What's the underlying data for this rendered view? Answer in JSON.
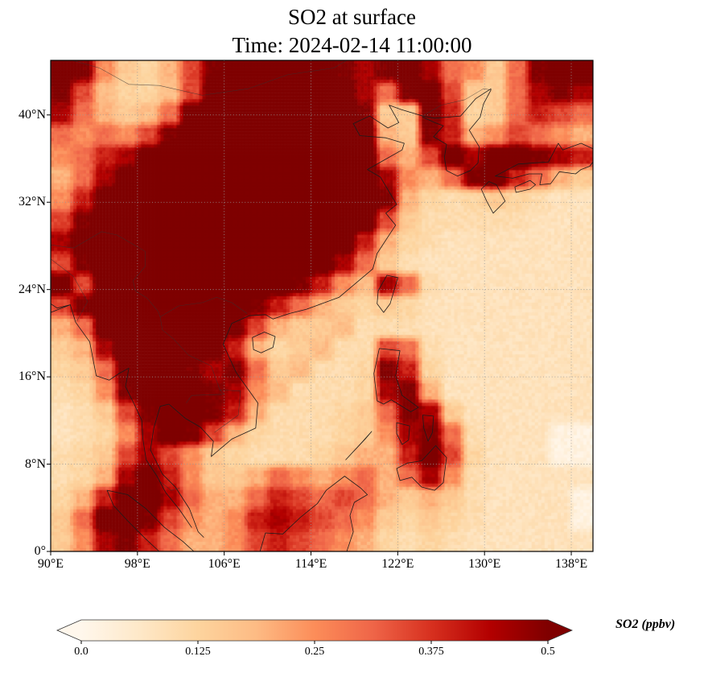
{
  "title": {
    "line1": "SO2 at surface",
    "line2": "Time: 2024-02-14 11:00:00"
  },
  "axes": {
    "x_ticks": [
      {
        "value": 90,
        "label": "90°E"
      },
      {
        "value": 98,
        "label": "98°E"
      },
      {
        "value": 106,
        "label": "106°E"
      },
      {
        "value": 114,
        "label": "114°E"
      },
      {
        "value": 122,
        "label": "122°E"
      },
      {
        "value": 130,
        "label": "130°E"
      },
      {
        "value": 138,
        "label": "138°E"
      }
    ],
    "y_ticks": [
      {
        "value": 40,
        "label": "40°N"
      },
      {
        "value": 32,
        "label": "32°N"
      },
      {
        "value": 24,
        "label": "24°N"
      },
      {
        "value": 16,
        "label": "16°N"
      },
      {
        "value": 8,
        "label": "8°N"
      },
      {
        "value": 0,
        "label": "0°"
      }
    ],
    "lon_range": [
      90,
      140
    ],
    "lat_range": [
      0,
      45
    ]
  },
  "colorbar": {
    "label": "SO2 (ppbv)",
    "ticks": [
      {
        "value": 0.0,
        "label": "0.0"
      },
      {
        "value": 0.125,
        "label": "0.125"
      },
      {
        "value": 0.25,
        "label": "0.25"
      },
      {
        "value": 0.375,
        "label": "0.375"
      },
      {
        "value": 0.5,
        "label": "0.5"
      }
    ]
  },
  "chart_data": {
    "type": "heatmap",
    "title": "SO2 at surface",
    "subtitle": "Time: 2024-02-14 11:00:00",
    "variable": "SO2",
    "units": "ppbv",
    "colormap": {
      "name": "OrRd-like",
      "stops": [
        "#fff7ec",
        "#fee8c8",
        "#fdd49e",
        "#fdbb84",
        "#fc8d59",
        "#ef6548",
        "#d7301f",
        "#b30000",
        "#7f0000"
      ],
      "vmin": 0.0,
      "vmax": 0.5,
      "extend": "both"
    },
    "grid": {
      "lon_min": 90,
      "lon_max": 140,
      "lat_top": 45,
      "lat_bottom": 0,
      "ncols": 25,
      "nrows": 23,
      "note": "rows from north (45N) to south (0N), cols from 90E to 140E, values in ppbv",
      "values": [
        [
          0.55,
          0.5,
          0.25,
          0.15,
          0.12,
          0.2,
          0.35,
          0.5,
          0.6,
          0.6,
          0.6,
          0.6,
          0.55,
          0.5,
          0.45,
          0.5,
          0.55,
          0.45,
          0.3,
          0.25,
          0.15,
          0.3,
          0.5,
          0.55,
          0.6
        ],
        [
          0.5,
          0.35,
          0.18,
          0.13,
          0.12,
          0.18,
          0.35,
          0.55,
          0.62,
          0.65,
          0.65,
          0.62,
          0.6,
          0.55,
          0.45,
          0.3,
          0.5,
          0.55,
          0.35,
          0.15,
          0.15,
          0.3,
          0.45,
          0.5,
          0.45
        ],
        [
          0.45,
          0.3,
          0.2,
          0.15,
          0.18,
          0.3,
          0.55,
          0.65,
          0.65,
          0.65,
          0.65,
          0.65,
          0.65,
          0.6,
          0.5,
          0.15,
          0.15,
          0.55,
          0.4,
          0.12,
          0.15,
          0.3,
          0.4,
          0.35,
          0.3
        ],
        [
          0.3,
          0.25,
          0.3,
          0.25,
          0.35,
          0.5,
          0.62,
          0.65,
          0.65,
          0.65,
          0.65,
          0.65,
          0.65,
          0.62,
          0.55,
          0.2,
          0.15,
          0.5,
          0.4,
          0.2,
          0.25,
          0.35,
          0.3,
          0.25,
          0.2
        ],
        [
          0.25,
          0.3,
          0.4,
          0.45,
          0.55,
          0.62,
          0.65,
          0.65,
          0.65,
          0.65,
          0.65,
          0.65,
          0.65,
          0.65,
          0.6,
          0.3,
          0.2,
          0.35,
          0.55,
          0.45,
          0.55,
          0.6,
          0.5,
          0.45,
          0.4
        ],
        [
          0.2,
          0.3,
          0.45,
          0.55,
          0.62,
          0.65,
          0.65,
          0.65,
          0.65,
          0.65,
          0.65,
          0.65,
          0.65,
          0.65,
          0.62,
          0.45,
          0.25,
          0.2,
          0.3,
          0.5,
          0.55,
          0.4,
          0.3,
          0.2,
          0.15
        ],
        [
          0.25,
          0.4,
          0.55,
          0.62,
          0.65,
          0.65,
          0.65,
          0.65,
          0.65,
          0.65,
          0.65,
          0.65,
          0.65,
          0.65,
          0.6,
          0.5,
          0.2,
          0.12,
          0.1,
          0.12,
          0.15,
          0.12,
          0.1,
          0.08,
          0.08
        ],
        [
          0.35,
          0.5,
          0.6,
          0.65,
          0.65,
          0.65,
          0.65,
          0.65,
          0.65,
          0.65,
          0.65,
          0.65,
          0.65,
          0.6,
          0.55,
          0.35,
          0.15,
          0.1,
          0.1,
          0.1,
          0.1,
          0.1,
          0.08,
          0.08,
          0.08
        ],
        [
          0.45,
          0.55,
          0.62,
          0.65,
          0.65,
          0.65,
          0.65,
          0.65,
          0.65,
          0.65,
          0.65,
          0.65,
          0.6,
          0.55,
          0.4,
          0.2,
          0.12,
          0.1,
          0.08,
          0.08,
          0.08,
          0.08,
          0.08,
          0.08,
          0.08
        ],
        [
          0.35,
          0.5,
          0.62,
          0.65,
          0.65,
          0.65,
          0.65,
          0.65,
          0.65,
          0.65,
          0.65,
          0.6,
          0.55,
          0.45,
          0.3,
          0.15,
          0.1,
          0.08,
          0.08,
          0.08,
          0.08,
          0.08,
          0.08,
          0.08,
          0.08
        ],
        [
          0.55,
          0.35,
          0.6,
          0.65,
          0.65,
          0.65,
          0.65,
          0.65,
          0.65,
          0.6,
          0.55,
          0.5,
          0.4,
          0.25,
          0.18,
          0.45,
          0.3,
          0.1,
          0.08,
          0.08,
          0.08,
          0.08,
          0.08,
          0.08,
          0.08
        ],
        [
          0.35,
          0.5,
          0.6,
          0.65,
          0.65,
          0.65,
          0.65,
          0.65,
          0.6,
          0.5,
          0.4,
          0.3,
          0.2,
          0.15,
          0.12,
          0.15,
          0.12,
          0.08,
          0.08,
          0.08,
          0.08,
          0.08,
          0.08,
          0.08,
          0.08
        ],
        [
          0.2,
          0.3,
          0.55,
          0.65,
          0.65,
          0.65,
          0.65,
          0.6,
          0.5,
          0.35,
          0.2,
          0.15,
          0.15,
          0.18,
          0.1,
          0.1,
          0.1,
          0.08,
          0.08,
          0.08,
          0.08,
          0.08,
          0.08,
          0.08,
          0.08
        ],
        [
          0.15,
          0.2,
          0.45,
          0.6,
          0.65,
          0.65,
          0.6,
          0.55,
          0.4,
          0.2,
          0.12,
          0.15,
          0.18,
          0.1,
          0.1,
          0.35,
          0.3,
          0.1,
          0.08,
          0.08,
          0.08,
          0.08,
          0.08,
          0.08,
          0.08
        ],
        [
          0.12,
          0.15,
          0.3,
          0.55,
          0.62,
          0.6,
          0.5,
          0.45,
          0.5,
          0.3,
          0.15,
          0.18,
          0.1,
          0.1,
          0.12,
          0.5,
          0.4,
          0.12,
          0.08,
          0.08,
          0.08,
          0.08,
          0.08,
          0.08,
          0.08
        ],
        [
          0.1,
          0.12,
          0.25,
          0.5,
          0.55,
          0.55,
          0.55,
          0.5,
          0.45,
          0.25,
          0.18,
          0.1,
          0.1,
          0.1,
          0.12,
          0.45,
          0.5,
          0.2,
          0.08,
          0.08,
          0.08,
          0.08,
          0.08,
          0.08,
          0.08
        ],
        [
          0.08,
          0.1,
          0.15,
          0.35,
          0.5,
          0.55,
          0.55,
          0.5,
          0.4,
          0.2,
          0.1,
          0.1,
          0.1,
          0.12,
          0.15,
          0.3,
          0.5,
          0.45,
          0.15,
          0.08,
          0.08,
          0.08,
          0.08,
          0.08,
          0.08
        ],
        [
          0.08,
          0.1,
          0.12,
          0.25,
          0.45,
          0.55,
          0.5,
          0.35,
          0.2,
          0.12,
          0.1,
          0.1,
          0.1,
          0.12,
          0.15,
          0.25,
          0.45,
          0.5,
          0.3,
          0.1,
          0.08,
          0.08,
          0.08,
          0.02,
          0.02
        ],
        [
          0.1,
          0.12,
          0.15,
          0.35,
          0.45,
          0.35,
          0.25,
          0.15,
          0.12,
          0.1,
          0.1,
          0.1,
          0.12,
          0.15,
          0.2,
          0.2,
          0.4,
          0.55,
          0.35,
          0.12,
          0.08,
          0.08,
          0.08,
          0.02,
          0.02
        ],
        [
          0.1,
          0.12,
          0.2,
          0.45,
          0.55,
          0.4,
          0.25,
          0.15,
          0.15,
          0.2,
          0.3,
          0.25,
          0.2,
          0.25,
          0.3,
          0.2,
          0.3,
          0.45,
          0.25,
          0.1,
          0.08,
          0.08,
          0.08,
          0.08,
          0.08
        ],
        [
          0.12,
          0.2,
          0.4,
          0.55,
          0.6,
          0.45,
          0.3,
          0.2,
          0.2,
          0.3,
          0.4,
          0.35,
          0.3,
          0.35,
          0.3,
          0.2,
          0.15,
          0.2,
          0.15,
          0.1,
          0.08,
          0.08,
          0.08,
          0.08,
          0.02
        ],
        [
          0.15,
          0.3,
          0.55,
          0.6,
          0.5,
          0.35,
          0.25,
          0.2,
          0.25,
          0.4,
          0.45,
          0.4,
          0.35,
          0.3,
          0.25,
          0.15,
          0.12,
          0.15,
          0.12,
          0.1,
          0.08,
          0.08,
          0.08,
          0.08,
          0.02
        ],
        [
          0.15,
          0.25,
          0.45,
          0.5,
          0.4,
          0.3,
          0.2,
          0.2,
          0.25,
          0.35,
          0.4,
          0.35,
          0.3,
          0.25,
          0.2,
          0.12,
          0.1,
          0.12,
          0.1,
          0.08,
          0.08,
          0.08,
          0.08,
          0.08,
          0.08
        ]
      ]
    }
  }
}
